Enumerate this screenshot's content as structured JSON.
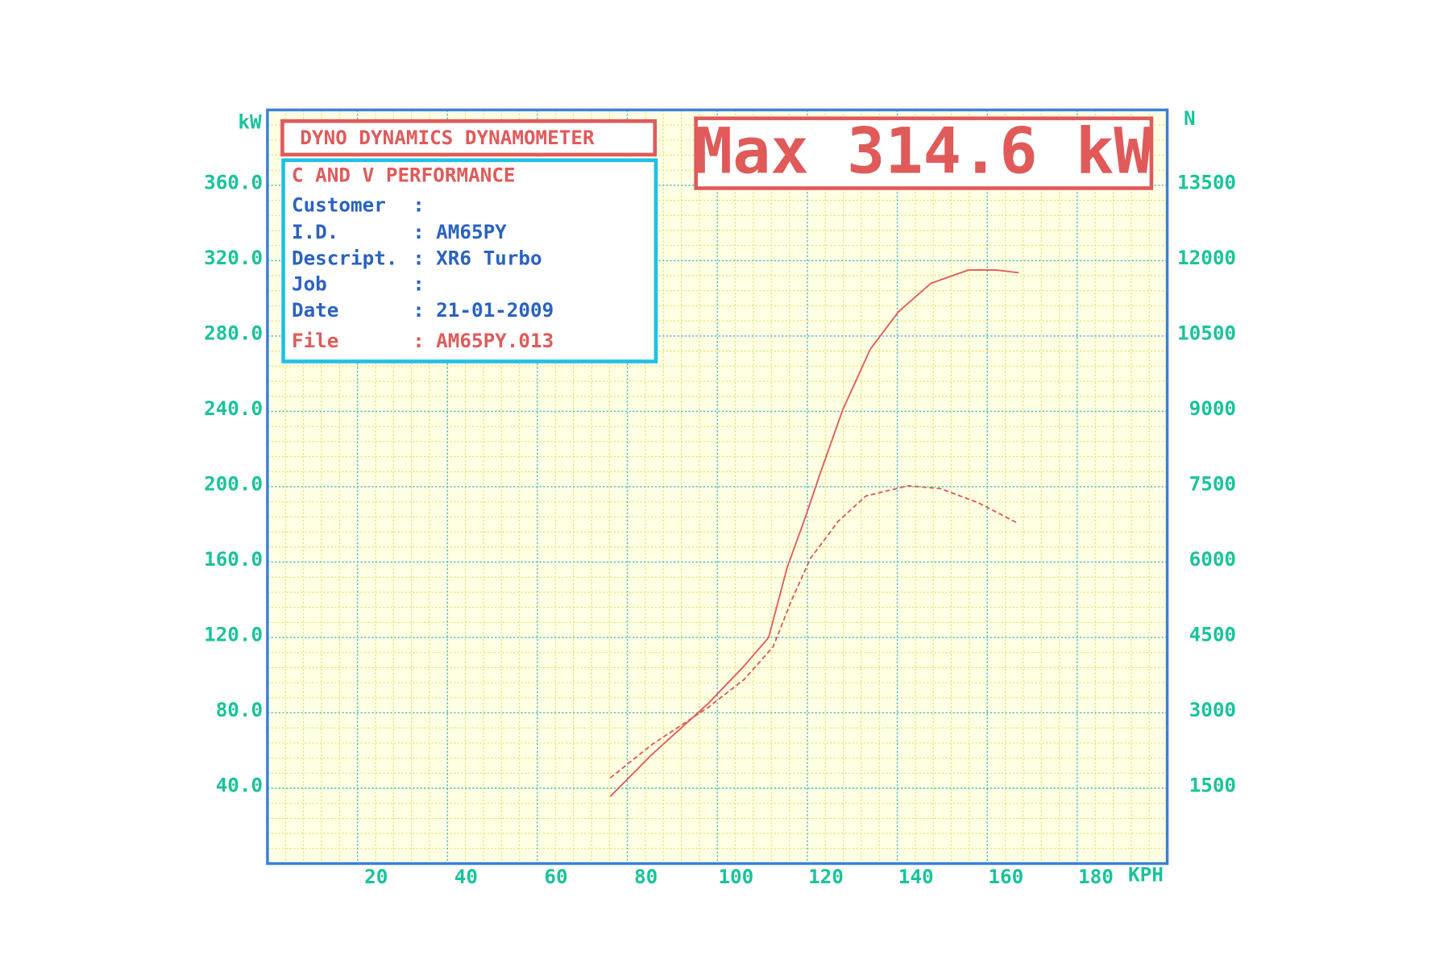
{
  "chart_data": {
    "type": "line",
    "header_title": "DYNO DYNAMICS DYNAMOMETER",
    "info": {
      "company": "C AND V PERFORMANCE",
      "rows": [
        {
          "label": "Customer",
          "sep": ":"
        },
        {
          "label": "I.D.",
          "sep": ":",
          "value": "AM65PY"
        },
        {
          "label": "Descript.",
          "sep": ":",
          "value": "XR6 Turbo"
        },
        {
          "label": "Job",
          "sep": ":"
        },
        {
          "label": "Date",
          "sep": ":",
          "value": "21-01-2009"
        },
        {
          "label": "File",
          "sep": ":",
          "value": "AM65PY.013"
        }
      ]
    },
    "max_label": "Max 314.6 kW",
    "y_label": "kW",
    "y2_label": "N",
    "x_label": "KPH",
    "xlim": [
      0,
      200
    ],
    "xticks": [
      20,
      40,
      60,
      80,
      100,
      120,
      140,
      160,
      180
    ],
    "ylim": [
      0,
      400
    ],
    "yticks": [
      {
        "value": 40,
        "label": "40.0"
      },
      {
        "value": 80,
        "label": "80.0"
      },
      {
        "value": 120,
        "label": "120.0"
      },
      {
        "value": 160,
        "label": "160.0"
      },
      {
        "value": 200,
        "label": "200.0"
      },
      {
        "value": 240,
        "label": "240.0"
      },
      {
        "value": 280,
        "label": "280.0"
      },
      {
        "value": 320,
        "label": "320.0"
      },
      {
        "value": 360,
        "label": "360.0"
      }
    ],
    "y2lim": [
      0,
      15000
    ],
    "y2ticks": [
      1500,
      3000,
      4500,
      6000,
      7500,
      9000,
      10500,
      12000,
      13500
    ],
    "grid": true,
    "series": [
      {
        "color": "#e05a5a",
        "dash": false,
        "x": [
          76.2,
          85.5,
          98,
          106,
          111.4,
          115.5,
          119.6,
          122.7,
          127.9,
          134,
          140.3,
          147.5,
          155.8,
          162,
          167
        ],
        "values": [
          35.6,
          58,
          85,
          105,
          120,
          157,
          184,
          206,
          241,
          273,
          293,
          308,
          315,
          315,
          313.6
        ]
      },
      {
        "color": "#e05a5a",
        "dash": true,
        "axis": "y2",
        "x": [
          76.2,
          85.5,
          98,
          106,
          112.4,
          116.5,
          120.7,
          126.9,
          133,
          142.4,
          149.6,
          157.9,
          166.7
        ],
        "values": [
          1704,
          2370,
          3111,
          3667,
          4315,
          5241,
          6074,
          6815,
          7315,
          7519,
          7463,
          7185,
          6778
        ]
      }
    ]
  }
}
